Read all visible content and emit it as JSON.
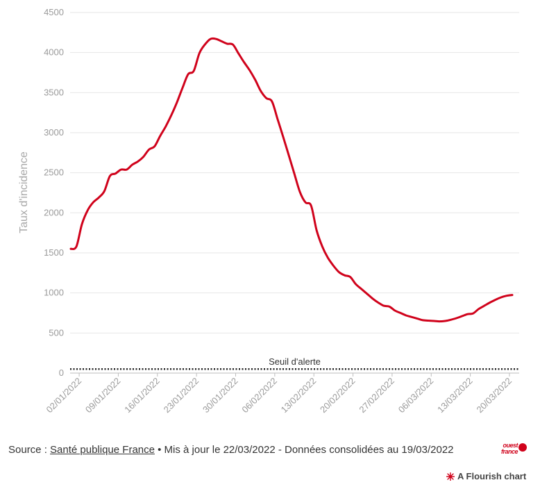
{
  "chart_data": {
    "type": "line",
    "ylabel": "Taux d'incidence",
    "xlabel": "",
    "ylim": [
      0,
      4500
    ],
    "yticks": [
      0,
      500,
      1000,
      1500,
      2000,
      2500,
      3000,
      3500,
      4000,
      4500
    ],
    "x_tick_labels": [
      "02/01/2022",
      "09/01/2022",
      "16/01/2022",
      "23/01/2022",
      "30/01/2022",
      "06/02/2022",
      "13/02/2022",
      "20/02/2022",
      "27/02/2022",
      "06/03/2022",
      "13/03/2022",
      "20/03/2022"
    ],
    "line_color": "#d0021b",
    "grid": "horizontal",
    "series": [
      {
        "values": [
          1550,
          1580,
          1860,
          2030,
          2130,
          2190,
          2270,
          2460,
          2490,
          2540,
          2540,
          2600,
          2640,
          2700,
          2790,
          2830,
          2960,
          3080,
          3220,
          3380,
          3560,
          3730,
          3770,
          3990,
          4100,
          4170,
          4170,
          4140,
          4110,
          4100,
          3990,
          3880,
          3780,
          3660,
          3520,
          3430,
          3390,
          3170,
          2950,
          2720,
          2490,
          2260,
          2130,
          2090,
          1780,
          1580,
          1440,
          1340,
          1260,
          1220,
          1200,
          1110,
          1050,
          990,
          930,
          880,
          840,
          830,
          780,
          750,
          720,
          700,
          680,
          660,
          655,
          650,
          645,
          650,
          665,
          685,
          710,
          735,
          745,
          800,
          840,
          880,
          915,
          945,
          965,
          975
        ]
      }
    ],
    "reference_line": {
      "label": "Seuil d'alerte",
      "value": 50,
      "style": "dotted"
    }
  },
  "footer": {
    "prefix": "Source : ",
    "link": "Santé publique France",
    "suffix": " • Mis à jour le 22/03/2022 - Données consolidées au 19/03/2022"
  },
  "logo": {
    "line1": "ouest",
    "line2": "france"
  },
  "credit": "A Flourish chart",
  "colors": {
    "line": "#d0021b",
    "grid": "#e6e6e6",
    "tick_text": "#9a9a9a",
    "reference": "#222222"
  }
}
